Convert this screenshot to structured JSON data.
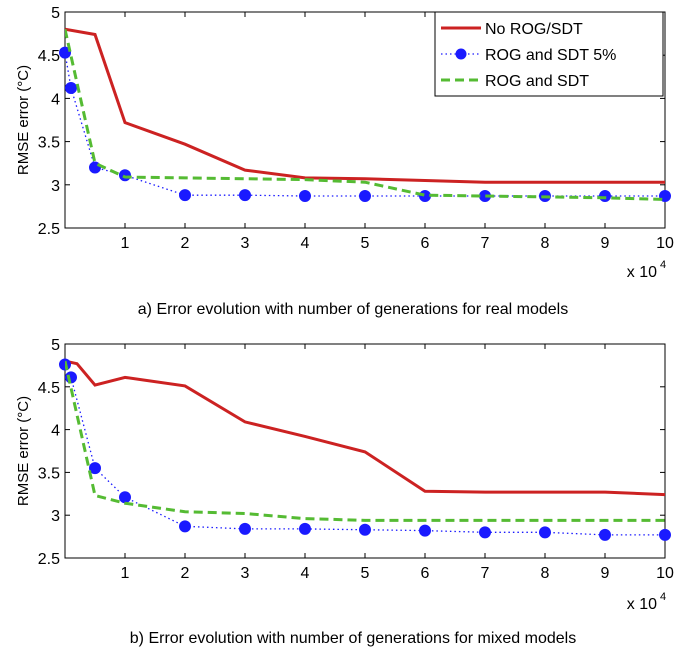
{
  "chart_data": [
    {
      "type": "line",
      "caption": "a) Error evolution with number of generations for real models",
      "ylabel": "RMSE error (°C)",
      "xlabel": "",
      "x_multiplier": "x 10",
      "x_multiplier_exp": "4",
      "xlim": [
        0,
        10
      ],
      "ylim": [
        2.5,
        5
      ],
      "xticks": [
        "1",
        "2",
        "3",
        "4",
        "5",
        "6",
        "7",
        "8",
        "9",
        "10"
      ],
      "yticks": [
        "2.5",
        "3",
        "3.5",
        "4",
        "4.5",
        "5"
      ],
      "legend_position": "top-right",
      "series": [
        {
          "name": "No ROG/SDT",
          "color": "#cc2222",
          "style": "solid",
          "x": [
            0,
            0.5,
            1,
            2,
            3,
            4,
            5,
            6,
            7,
            8,
            9,
            10
          ],
          "y": [
            4.8,
            4.74,
            3.72,
            3.47,
            3.17,
            3.08,
            3.07,
            3.05,
            3.03,
            3.03,
            3.03,
            3.03
          ]
        },
        {
          "name": "ROG and SDT 5%",
          "color": "#1a1aff",
          "style": "dotted-markers",
          "x": [
            0,
            0.1,
            0.5,
            1,
            2,
            3,
            4,
            5,
            6,
            7,
            8,
            9,
            10
          ],
          "y": [
            4.53,
            4.12,
            3.2,
            3.11,
            2.88,
            2.88,
            2.87,
            2.87,
            2.87,
            2.87,
            2.87,
            2.87,
            2.87
          ]
        },
        {
          "name": "ROG and SDT",
          "color": "#55bb33",
          "style": "dashed",
          "x": [
            0,
            0.5,
            1,
            2,
            3,
            4,
            5,
            6,
            7,
            8,
            9,
            10
          ],
          "y": [
            4.8,
            3.25,
            3.09,
            3.08,
            3.07,
            3.06,
            3.03,
            2.88,
            2.87,
            2.86,
            2.85,
            2.83
          ]
        }
      ]
    },
    {
      "type": "line",
      "caption": "b) Error evolution with number of generations for mixed models",
      "ylabel": "RMSE error (°C)",
      "xlabel": "",
      "x_multiplier": "x 10",
      "x_multiplier_exp": "4",
      "xlim": [
        0,
        10
      ],
      "ylim": [
        2.5,
        5
      ],
      "xticks": [
        "1",
        "2",
        "3",
        "4",
        "5",
        "6",
        "7",
        "8",
        "9",
        "10"
      ],
      "yticks": [
        "2.5",
        "3",
        "3.5",
        "4",
        "4.5",
        "5"
      ],
      "legend_position": "none",
      "series": [
        {
          "name": "No ROG/SDT",
          "color": "#cc2222",
          "style": "solid",
          "x": [
            0,
            0.2,
            0.5,
            1,
            2,
            3,
            4,
            5,
            6,
            7,
            8,
            9,
            10
          ],
          "y": [
            4.8,
            4.77,
            4.52,
            4.61,
            4.51,
            4.09,
            3.92,
            3.74,
            3.28,
            3.27,
            3.27,
            3.27,
            3.24
          ]
        },
        {
          "name": "ROG and SDT 5%",
          "color": "#1a1aff",
          "style": "dotted-markers",
          "x": [
            0,
            0.1,
            0.5,
            1,
            2,
            3,
            4,
            5,
            6,
            7,
            8,
            9,
            10
          ],
          "y": [
            4.76,
            4.61,
            3.55,
            3.21,
            2.87,
            2.84,
            2.84,
            2.83,
            2.82,
            2.8,
            2.8,
            2.77,
            2.77
          ]
        },
        {
          "name": "ROG and SDT",
          "color": "#55bb33",
          "style": "dashed",
          "x": [
            0,
            0.5,
            1,
            2,
            3,
            4,
            5,
            6,
            7,
            8,
            9,
            10
          ],
          "y": [
            4.8,
            3.23,
            3.14,
            3.04,
            3.02,
            2.96,
            2.94,
            2.94,
            2.94,
            2.94,
            2.94,
            2.94
          ]
        }
      ]
    }
  ]
}
